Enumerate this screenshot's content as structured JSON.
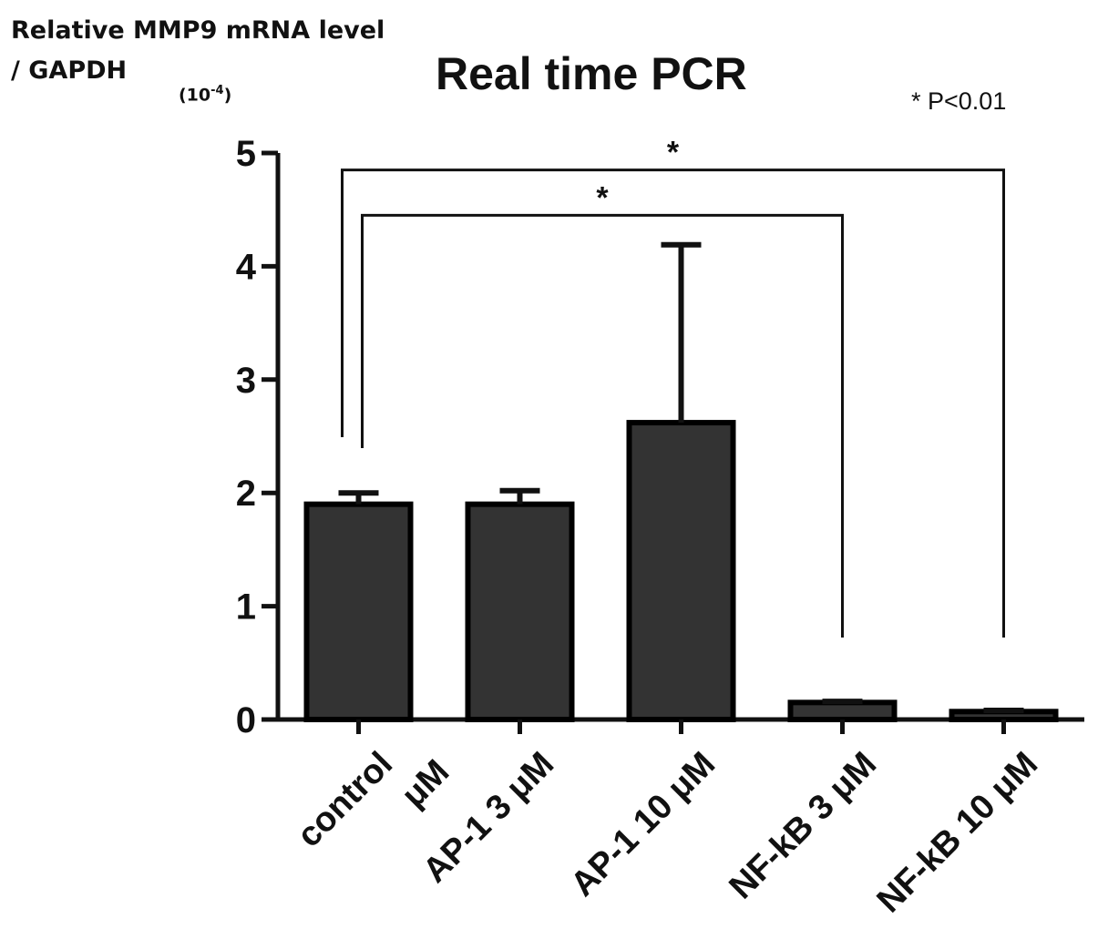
{
  "chart_data": {
    "type": "bar",
    "title": "Real time PCR",
    "ylabel": "Relative MMP9 mRNA level\n/ GAPDH",
    "yunit": "(10-4)",
    "annotation": "* P<0.01",
    "categories": [
      "control μM",
      "AP-1 3 μM",
      "AP-1 10 μM",
      "NF-kB 3 μM",
      "NF-kB 10 μM"
    ],
    "values": [
      1.9,
      1.9,
      2.62,
      0.15,
      0.07
    ],
    "errors": [
      0.1,
      0.12,
      1.57,
      0.01,
      0.01
    ],
    "ylim": [
      0,
      5
    ],
    "yticks": [
      0,
      1,
      2,
      3,
      4,
      5
    ],
    "significance": [
      {
        "from": 0,
        "to": 4,
        "label": "*",
        "y": 4.85
      },
      {
        "from": 0,
        "to": 3,
        "label": "*",
        "y": 4.45
      }
    ],
    "bar_color": "#333333",
    "grid": false
  }
}
